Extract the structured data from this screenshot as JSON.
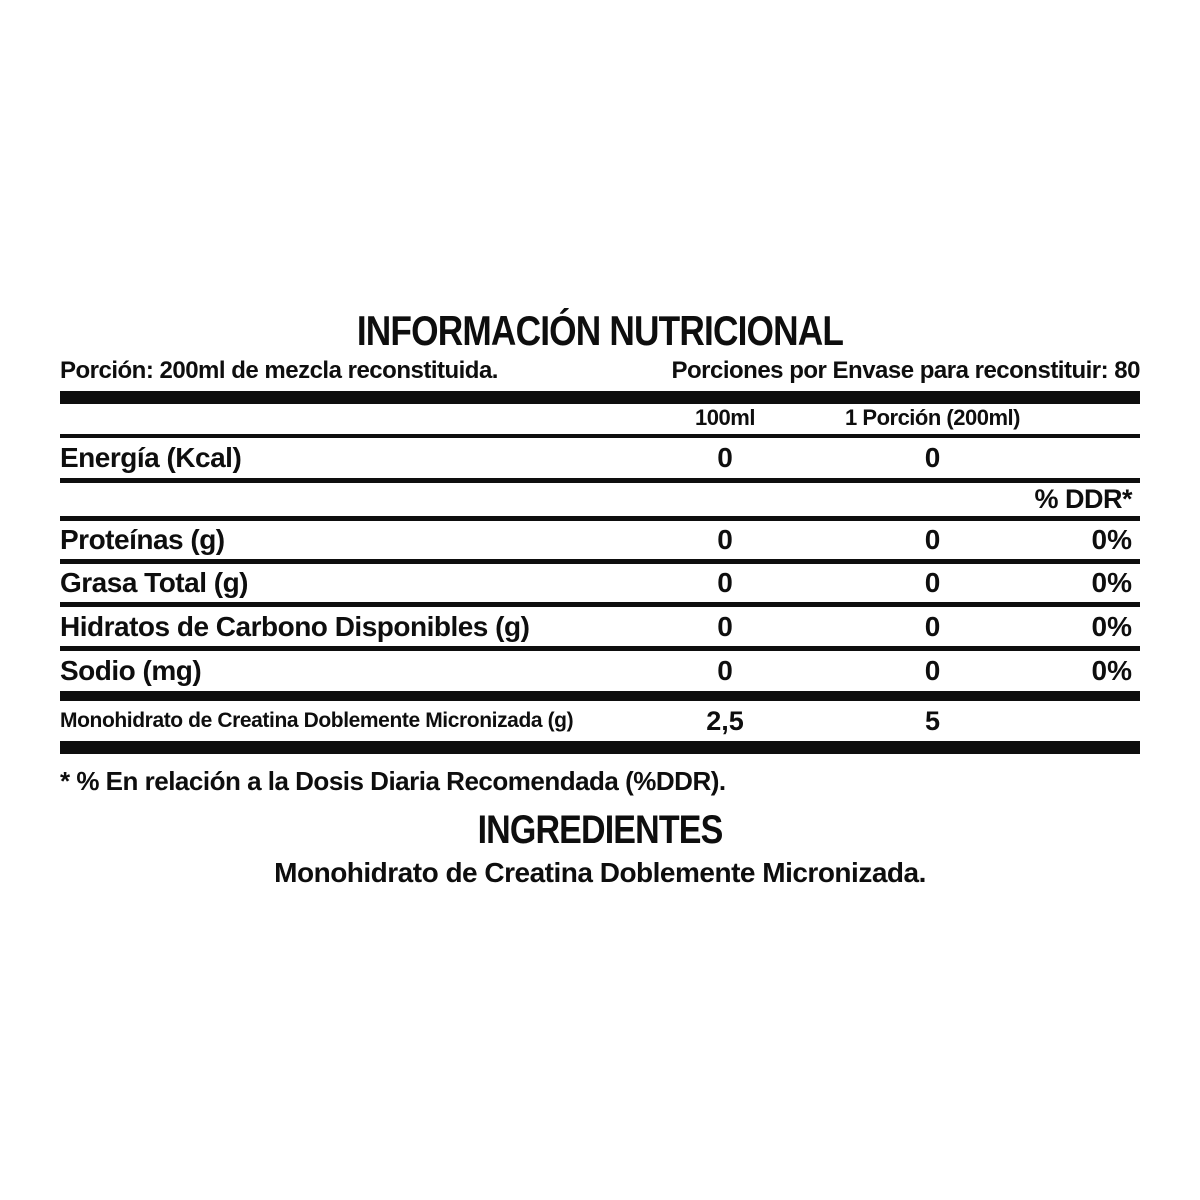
{
  "title": "INFORMACIÓN NUTRICIONAL",
  "serving": {
    "left": "Porción: 200ml de mezcla reconstituida.",
    "right": "Porciones por Envase para reconstituir: 80"
  },
  "table": {
    "col_headers": {
      "per100": "100ml",
      "per_serving": "1 Porción (200ml)"
    },
    "ddr_header": "% DDR*",
    "rows": [
      {
        "name": "Energía (Kcal)",
        "per100": "0",
        "per_serving": "0",
        "ddr": ""
      },
      {
        "name": "Proteínas (g)",
        "per100": "0",
        "per_serving": "0",
        "ddr": "0%"
      },
      {
        "name": "Grasa Total (g)",
        "per100": "0",
        "per_serving": "0",
        "ddr": "0%"
      },
      {
        "name": "Hidratos de Carbono Disponibles (g)",
        "per100": "0",
        "per_serving": "0",
        "ddr": "0%"
      },
      {
        "name": "Sodio (mg)",
        "per100": "0",
        "per_serving": "0",
        "ddr": "0%"
      }
    ],
    "highlight_row": {
      "name": "Monohidrato de Creatina Doblemente Micronizada (g)",
      "per100": "2,5",
      "per_serving": "5",
      "ddr": ""
    }
  },
  "footnote": "* % En relación a la Dosis Diaria Recomendada (%DDR).",
  "ingredients": {
    "title": "INGREDIENTES",
    "text": "Monohidrato de Creatina Doblemente Micronizada."
  },
  "colors": {
    "text": "#0e0e0e",
    "background": "#ffffff"
  }
}
